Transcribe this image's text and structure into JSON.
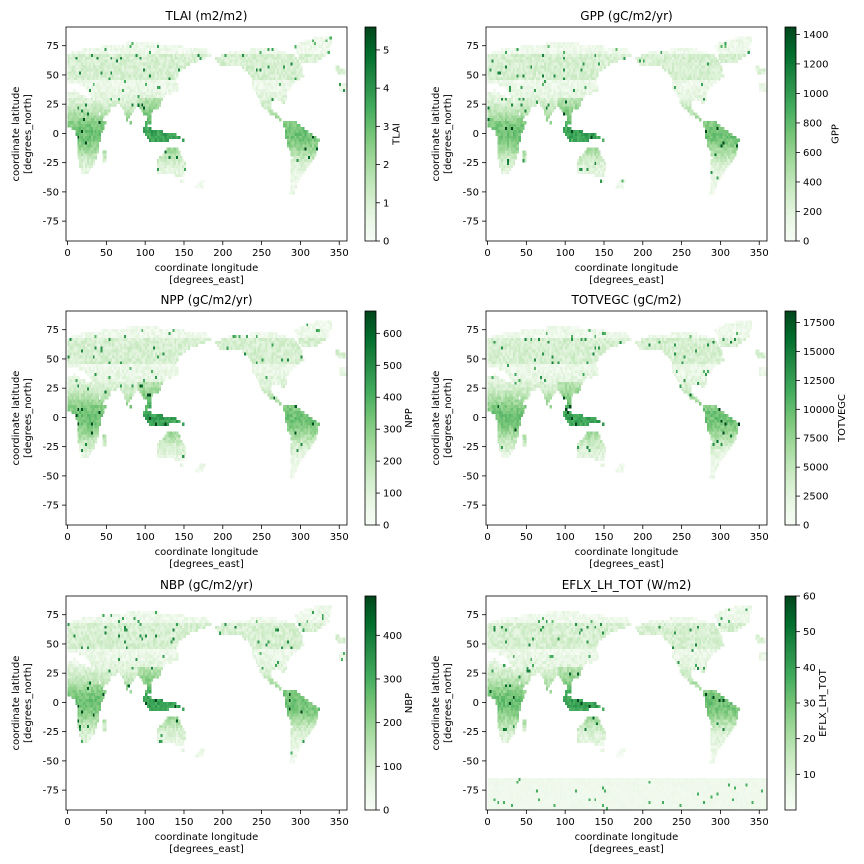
{
  "figure": {
    "lon_ticks": [
      0,
      50,
      100,
      150,
      200,
      250,
      300,
      350
    ],
    "lat_ticks": [
      -75,
      -50,
      -25,
      0,
      25,
      50,
      75
    ],
    "xlim": [
      -2,
      360
    ],
    "ylim": [
      -92,
      91
    ],
    "xlabel_line1": "coordinate longitude",
    "xlabel_line2": "[degrees_east]",
    "ylabel_line1": "coordinate latitude",
    "ylabel_line2": "[degrees_north]",
    "colormap": "Greens",
    "colormap_low": "#f7fcf5",
    "colormap_high": "#00441b"
  },
  "chart_data": [
    {
      "type": "heatmap",
      "title": "TLAI (m2/m2)",
      "colorbar_label": "TLAI",
      "vmin": 0,
      "vmax": 5.6,
      "colorbar_ticks": [
        0,
        1,
        2,
        3,
        4,
        5
      ],
      "colorbar_tick_labels": [
        "0",
        "1",
        "2",
        "3",
        "4",
        "5"
      ],
      "xlabel": "coordinate longitude [degrees_east]",
      "ylabel": "coordinate latitude [degrees_north]",
      "xlim": [
        -2,
        360
      ],
      "ylim": [
        -92,
        91
      ],
      "antarctica": false
    },
    {
      "type": "heatmap",
      "title": "GPP (gC/m2/yr)",
      "colorbar_label": "GPP",
      "vmin": 0,
      "vmax": 1450,
      "colorbar_ticks": [
        0,
        200,
        400,
        600,
        800,
        1000,
        1200,
        1400
      ],
      "colorbar_tick_labels": [
        "0",
        "200",
        "400",
        "600",
        "800",
        "1000",
        "1200",
        "1400"
      ],
      "xlabel": "coordinate longitude [degrees_east]",
      "ylabel": "coordinate latitude [degrees_north]",
      "xlim": [
        -2,
        360
      ],
      "ylim": [
        -92,
        91
      ],
      "antarctica": false
    },
    {
      "type": "heatmap",
      "title": "NPP (gC/m2/yr)",
      "colorbar_label": "NPP",
      "vmin": 0,
      "vmax": 670,
      "colorbar_ticks": [
        0,
        100,
        200,
        300,
        400,
        500,
        600
      ],
      "colorbar_tick_labels": [
        "0",
        "100",
        "200",
        "300",
        "400",
        "500",
        "600"
      ],
      "xlabel": "coordinate longitude [degrees_east]",
      "ylabel": "coordinate latitude [degrees_north]",
      "xlim": [
        -2,
        360
      ],
      "ylim": [
        -92,
        91
      ],
      "antarctica": false
    },
    {
      "type": "heatmap",
      "title": "TOTVEGC (gC/m2)",
      "colorbar_label": "TOTVEGC",
      "vmin": 0,
      "vmax": 18500,
      "colorbar_ticks": [
        0,
        2500,
        5000,
        7500,
        10000,
        12500,
        15000,
        17500
      ],
      "colorbar_tick_labels": [
        "0",
        "2500",
        "5000",
        "7500",
        "10000",
        "12500",
        "15000",
        "17500"
      ],
      "xlabel": "coordinate longitude [degrees_east]",
      "ylabel": "coordinate latitude [degrees_north]",
      "xlim": [
        -2,
        360
      ],
      "ylim": [
        -92,
        91
      ],
      "antarctica": false
    },
    {
      "type": "heatmap",
      "title": "NBP (gC/m2/yr)",
      "colorbar_label": "NBP",
      "vmin": 0,
      "vmax": 490,
      "colorbar_ticks": [
        0,
        100,
        200,
        300,
        400
      ],
      "colorbar_tick_labels": [
        "0",
        "100",
        "200",
        "300",
        "400"
      ],
      "xlabel": "coordinate longitude [degrees_east]",
      "ylabel": "coordinate latitude [degrees_north]",
      "xlim": [
        -2,
        360
      ],
      "ylim": [
        -92,
        91
      ],
      "antarctica": false
    },
    {
      "type": "heatmap",
      "title": "EFLX_LH_TOT (W/m2)",
      "colorbar_label": "EFLX_LH_TOT",
      "vmin": 0,
      "vmax": 60,
      "colorbar_ticks": [
        10,
        20,
        30,
        40,
        50,
        60
      ],
      "colorbar_tick_labels": [
        "10",
        "20",
        "30",
        "40",
        "50",
        "60"
      ],
      "xlabel": "coordinate longitude [degrees_east]",
      "ylabel": "coordinate latitude [degrees_north]",
      "xlim": [
        -2,
        360
      ],
      "ylim": [
        -92,
        91
      ],
      "antarctica": true
    }
  ]
}
